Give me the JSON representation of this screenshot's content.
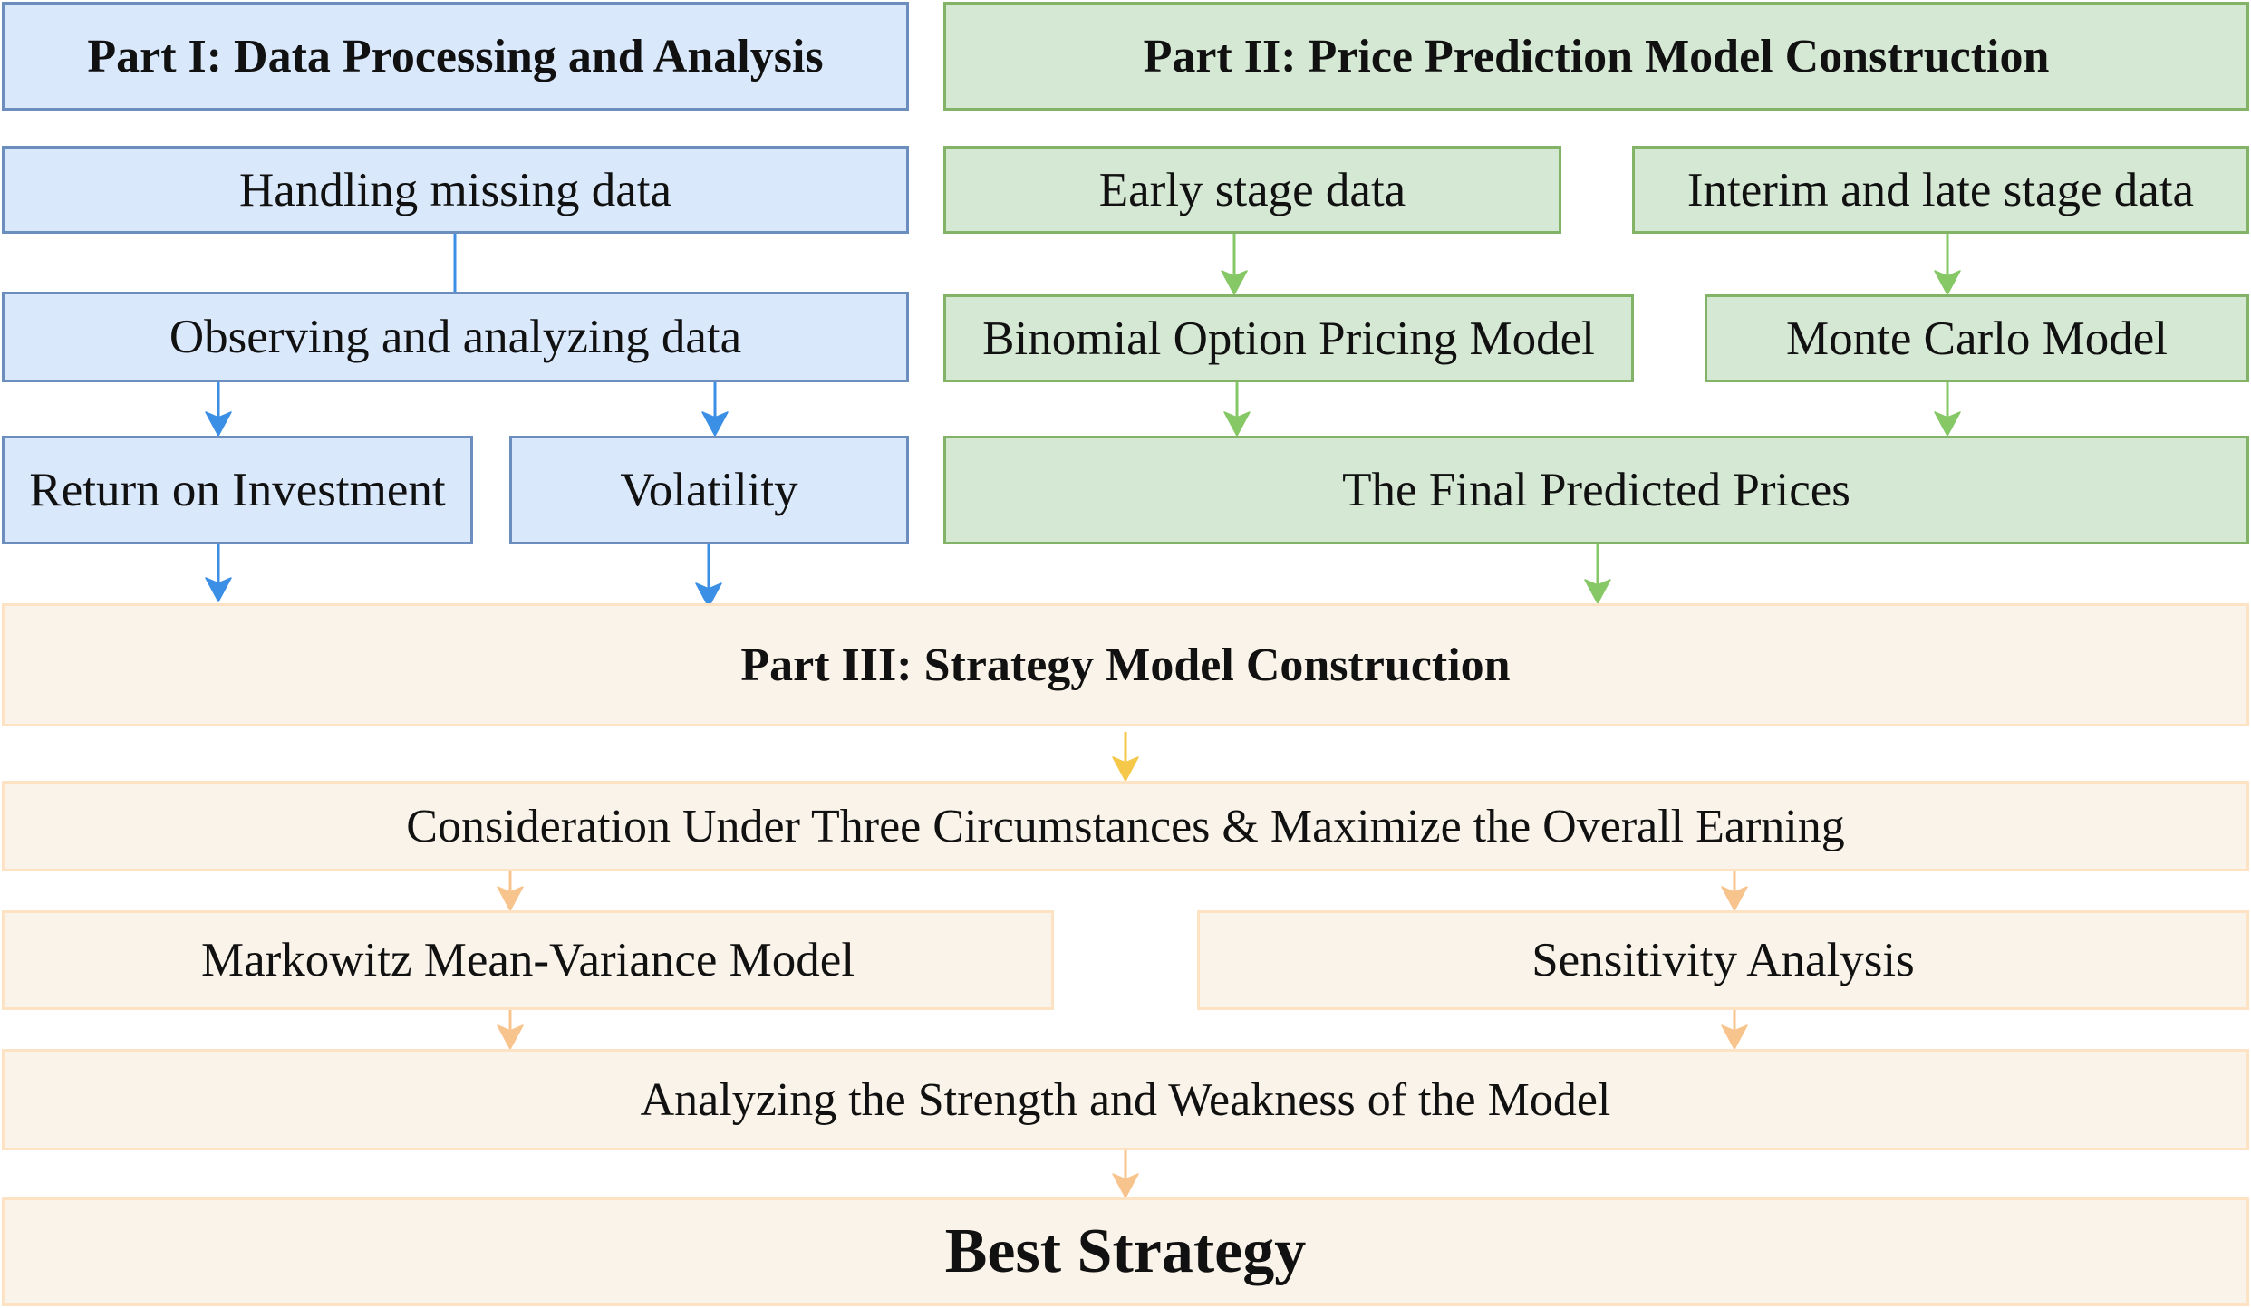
{
  "part1": {
    "title": "Part I: Data Processing and Analysis",
    "handling": "Handling missing data",
    "observing": "Observing and analyzing data",
    "roi": "Return on Investment",
    "volatility": "Volatility"
  },
  "part2": {
    "title": "Part II: Price Prediction Model Construction",
    "early": "Early stage data",
    "interim": "Interim and late stage data",
    "binomial": "Binomial Option Pricing Model",
    "monte_carlo": "Monte Carlo Model",
    "final_prices": "The Final Predicted Prices"
  },
  "part3": {
    "title": "Part III: Strategy Model Construction",
    "consideration": "Consideration Under Three Circumstances & Maximize the Overall Earning",
    "markowitz": "Markowitz Mean-Variance Model",
    "sensitivity": "Sensitivity Analysis",
    "strength": "Analyzing the Strength and Weakness of the Model",
    "best": "Best Strategy"
  },
  "colors": {
    "blue_fill": "#dae8fc",
    "blue_stroke": "#6c8ebf",
    "blue_arrow": "#3b8fe5",
    "green_fill": "#d5e8d4",
    "green_stroke": "#82b366",
    "green_arrow": "#86c766",
    "orange_fill": "#f9f3e9",
    "orange_stroke": "#fde2c4",
    "orange_arrow": "#f8c48e",
    "yellow_arrow": "#f5c84a"
  }
}
